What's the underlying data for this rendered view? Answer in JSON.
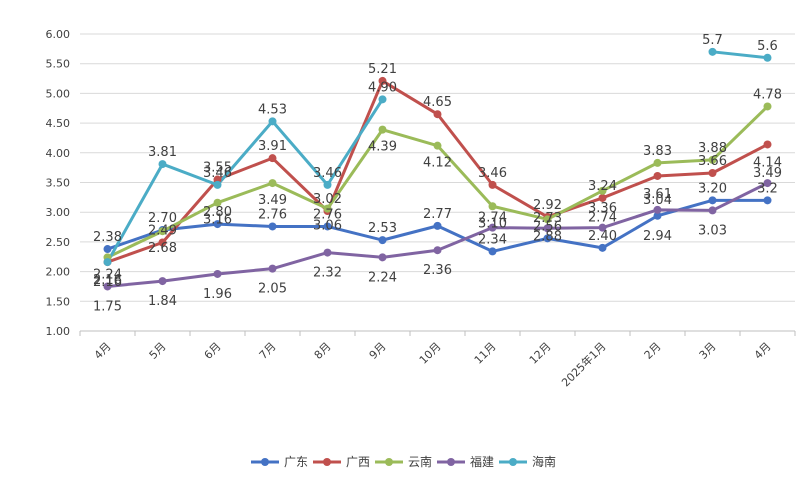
{
  "chart_data": {
    "type": "line",
    "title": "",
    "xlabel": "",
    "ylabel": "",
    "ylim": [
      1.0,
      6.0
    ],
    "yticks": [
      "1.00",
      "1.50",
      "2.00",
      "2.50",
      "3.00",
      "3.50",
      "4.00",
      "4.50",
      "5.00",
      "5.50",
      "6.00"
    ],
    "categories": [
      "4月",
      "5月",
      "6月",
      "7月",
      "8月",
      "9月",
      "10月",
      "11月",
      "12月",
      "2025年1月",
      "2月",
      "3月",
      "4月"
    ],
    "grid": "horizontal",
    "legend_position": "bottom",
    "series": [
      {
        "name": "广东",
        "color": "#4472C4",
        "values": [
          2.38,
          2.7,
          2.8,
          2.76,
          2.76,
          2.53,
          2.77,
          2.34,
          2.56,
          2.4,
          2.94,
          3.2,
          3.2
        ],
        "labels": [
          "2.38",
          "2.70",
          "2.80",
          "2.76",
          "2.76",
          "2.53",
          "2.77",
          "2.34",
          "2.56",
          "2.40",
          "2.94",
          "3.20",
          "3.2"
        ]
      },
      {
        "name": "广西",
        "color": "#C0504D",
        "values": [
          2.16,
          2.49,
          3.55,
          3.91,
          3.02,
          5.21,
          4.65,
          3.46,
          2.92,
          3.24,
          3.61,
          3.66,
          4.14
        ],
        "labels": [
          "2.16",
          "2.49",
          "3.55",
          "3.91",
          "3.02",
          "5.21",
          "4.65",
          "3.46",
          "2.92",
          "3.24",
          "3.61",
          "3.66",
          "4.14"
        ]
      },
      {
        "name": "云南",
        "color": "#9BBB59",
        "values": [
          2.24,
          2.68,
          3.16,
          3.49,
          3.06,
          4.39,
          4.12,
          3.1,
          2.88,
          3.36,
          3.83,
          3.88,
          4.78
        ],
        "labels": [
          "2.24",
          "2.68",
          "3.16",
          "3.49",
          "3.06",
          "4.39",
          "4.12",
          "3.10",
          "2.88",
          "3.36",
          "3.83",
          "3.88",
          "4.78"
        ]
      },
      {
        "name": "福建",
        "color": "#8064A2",
        "values": [
          1.75,
          1.84,
          1.96,
          2.05,
          2.32,
          2.24,
          2.36,
          2.74,
          2.73,
          2.74,
          3.04,
          3.03,
          3.49
        ],
        "labels": [
          "1.75",
          "1.84",
          "1.96",
          "2.05",
          "2.32",
          "2.24",
          "2.36",
          "2.74",
          "2.73",
          "2.74",
          "3.04",
          "3.03",
          "3.49"
        ]
      },
      {
        "name": "海南",
        "color": "#4BACC6",
        "values": [
          2.16,
          3.81,
          3.46,
          4.53,
          3.46,
          4.9,
          null,
          null,
          null,
          null,
          null,
          5.7,
          5.6
        ],
        "labels": [
          "2.16",
          "3.81",
          "3.46",
          "4.53",
          "3.46",
          "4.90",
          "",
          "",
          "",
          "",
          "",
          "5.7",
          "5.6"
        ]
      }
    ]
  }
}
